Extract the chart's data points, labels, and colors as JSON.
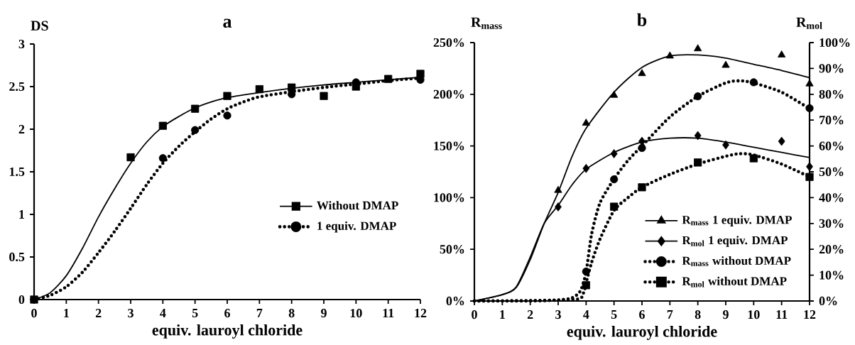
{
  "chart_data": [
    {
      "type": "line",
      "title": "a",
      "xlabel": "equiv. lauroyl chloride",
      "ylabel": "DS",
      "xlim": [
        0,
        12
      ],
      "xticks": [
        0,
        1,
        2,
        3,
        4,
        5,
        6,
        7,
        8,
        9,
        10,
        11,
        12
      ],
      "ylim": [
        0,
        3
      ],
      "yticks": [
        0,
        0.5,
        1,
        1.5,
        2,
        2.5,
        3
      ],
      "legend": "bottom right",
      "series": [
        {
          "name": "Without DMAP",
          "type": "scatter",
          "color": "#000000",
          "marker": "square",
          "line_style": "solid",
          "x": [
            0,
            3,
            4,
            5,
            6,
            7,
            8,
            9,
            10,
            11,
            12
          ],
          "values": [
            0,
            1.67,
            2.04,
            2.24,
            2.39,
            2.47,
            2.49,
            2.39,
            2.5,
            2.59,
            2.65
          ]
        },
        {
          "name": "1 equiv. DMAP",
          "type": "scatter",
          "color": "#000000",
          "marker": "circle",
          "line_style": "dotted",
          "x": [
            4,
            5,
            6,
            8,
            10,
            12
          ],
          "values": [
            1.66,
            1.99,
            2.16,
            2.41,
            2.55,
            2.58
          ]
        },
        {
          "color": "#000000",
          "marker": "none",
          "line_style": "solid",
          "x": [
            0,
            0.5,
            1,
            1.5,
            2,
            2.5,
            3,
            3.5,
            4,
            4.5,
            5,
            5.5,
            6,
            7,
            8,
            9,
            10,
            11,
            12
          ],
          "values": [
            0,
            0.08,
            0.28,
            0.6,
            0.97,
            1.3,
            1.6,
            1.85,
            2.03,
            2.15,
            2.25,
            2.32,
            2.37,
            2.43,
            2.48,
            2.52,
            2.55,
            2.58,
            2.61
          ]
        },
        {
          "color": "#000000",
          "marker": "none",
          "line_style": "dotted",
          "x": [
            0,
            0.5,
            1,
            1.5,
            2,
            2.5,
            3,
            3.5,
            4,
            4.5,
            5,
            5.5,
            6,
            6.5,
            7,
            8,
            9,
            10,
            11,
            12
          ],
          "values": [
            0,
            0.05,
            0.15,
            0.32,
            0.55,
            0.8,
            1.07,
            1.35,
            1.6,
            1.8,
            1.97,
            2.12,
            2.24,
            2.32,
            2.38,
            2.44,
            2.49,
            2.53,
            2.57,
            2.6
          ]
        }
      ]
    },
    {
      "type": "line",
      "title": "b",
      "xlabel": "equiv. lauroyl chloride",
      "ylabel": "R$_{mass}$",
      "y2label": "R$_{mol}$",
      "xlim": [
        0,
        12
      ],
      "xticks": [
        0,
        1,
        2,
        3,
        4,
        5,
        6,
        7,
        8,
        9,
        10,
        11,
        12
      ],
      "ylim": [
        0,
        250
      ],
      "yticks": [
        {
          "value": 0,
          "label": "0%"
        },
        {
          "value": 50,
          "label": "50%"
        },
        {
          "value": 100,
          "label": "100%"
        },
        {
          "value": 150,
          "label": "150%"
        },
        {
          "value": 200,
          "label": "200%"
        },
        {
          "value": 250,
          "label": "250%"
        }
      ],
      "y2lim": [
        0,
        100
      ],
      "y2ticks": [
        {
          "value": 0,
          "label": "0%"
        },
        {
          "value": 10,
          "label": "10%"
        },
        {
          "value": 20,
          "label": "20%"
        },
        {
          "value": 30,
          "label": "30%"
        },
        {
          "value": 40,
          "label": "40%"
        },
        {
          "value": 50,
          "label": "50%"
        },
        {
          "value": 60,
          "label": "60%"
        },
        {
          "value": 70,
          "label": "70%"
        },
        {
          "value": 80,
          "label": "80%"
        },
        {
          "value": 90,
          "label": "90%"
        },
        {
          "value": 100,
          "label": "100%"
        }
      ],
      "legend": "bottom right",
      "series": [
        {
          "name": "R$_{mass}$ 1 equiv. DMAP",
          "type": "scatter",
          "color": "#000000",
          "marker": "triangle",
          "line_style": "solid",
          "x": [
            3,
            4,
            5,
            6,
            7,
            8,
            9,
            11,
            12
          ],
          "values": [
            107,
            172,
            199,
            220,
            237,
            244,
            228,
            238,
            210
          ]
        },
        {
          "name": "R$_{mol}$ 1 equiv. DMAP",
          "type": "scatter",
          "axis": "y2",
          "color": "#000000",
          "marker": "diamond",
          "line_style": "solid",
          "x": [
            3,
            4,
            5,
            6,
            8,
            9,
            11,
            12
          ],
          "values": [
            36.4,
            51.3,
            57,
            61.8,
            64,
            60.4,
            61.8,
            52
          ]
        },
        {
          "name": "R$_{mass}$ without DMAP",
          "type": "scatter",
          "color": "#000000",
          "marker": "circle",
          "line_style": "dotted",
          "x": [
            4,
            5,
            6,
            8,
            10,
            12
          ],
          "values": [
            28.5,
            117.7,
            148,
            198,
            211.6,
            186.5
          ]
        },
        {
          "name": "R$_{mol}$ without DMAP",
          "type": "scatter",
          "axis": "y2",
          "color": "#000000",
          "marker": "square",
          "line_style": "dotted",
          "x": [
            4,
            5,
            6,
            8,
            10,
            12
          ],
          "values": [
            6.1,
            36.5,
            44,
            53.6,
            55.2,
            48
          ]
        },
        {
          "color": "#000000",
          "marker": "none",
          "line_style": "solid",
          "x": [
            0,
            1,
            1.5,
            2,
            2.5,
            3,
            3.5,
            4,
            5,
            6,
            7,
            8,
            9,
            10,
            11,
            12
          ],
          "values": [
            0,
            6,
            13,
            40,
            75,
            105,
            140,
            167,
            202,
            226,
            237,
            238,
            235,
            229,
            223,
            216
          ]
        },
        {
          "axis": "y2",
          "color": "#000000",
          "marker": "none",
          "line_style": "solid",
          "x": [
            0,
            1,
            1.5,
            2,
            2.5,
            3,
            3.5,
            4,
            5,
            6,
            7,
            8,
            9,
            10,
            11,
            12
          ],
          "values": [
            0,
            2.5,
            5.5,
            17,
            30,
            37,
            45,
            51,
            57.5,
            61.5,
            63,
            63,
            61.5,
            59.5,
            57.5,
            55.5
          ]
        },
        {
          "color": "#000000",
          "marker": "none",
          "line_style": "dotted",
          "x": [
            0,
            1,
            2,
            3,
            3.5,
            3.8,
            4,
            4.2,
            4.5,
            5,
            5.5,
            6,
            7,
            8,
            9,
            9.5,
            10,
            11,
            12
          ],
          "values": [
            0,
            0,
            0,
            1,
            3,
            10,
            28,
            65,
            95,
            118,
            136,
            150,
            178,
            198,
            211,
            213,
            211,
            202,
            186
          ]
        },
        {
          "axis": "y2",
          "color": "#000000",
          "marker": "none",
          "line_style": "dotted",
          "x": [
            0,
            3.5,
            3.9,
            4,
            4.2,
            4.5,
            5,
            5.5,
            6,
            7,
            8,
            9,
            9.5,
            10,
            11,
            12
          ],
          "values": [
            0,
            0.5,
            3,
            7,
            15,
            24,
            35,
            40,
            44,
            49,
            53,
            56,
            57,
            56.5,
            53,
            48
          ]
        }
      ]
    }
  ]
}
